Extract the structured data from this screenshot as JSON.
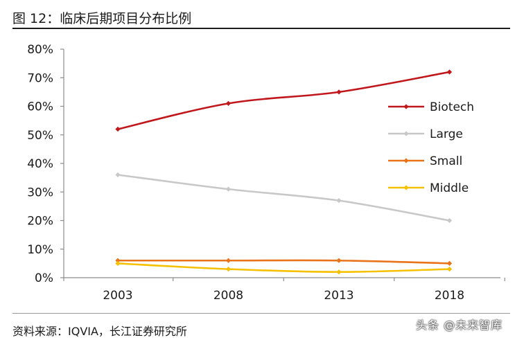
{
  "figure": {
    "title": "图  12：临床后期项目分布比例",
    "source": "资料来源：IQVIA，长江证券研究所",
    "watermark": "头条 @未来智库"
  },
  "chart_data": {
    "type": "line",
    "title": "",
    "xlabel": "",
    "ylabel": "",
    "x": [
      "2003",
      "2008",
      "2013",
      "2018"
    ],
    "y_ticks": [
      "0%",
      "10%",
      "20%",
      "30%",
      "40%",
      "50%",
      "60%",
      "70%",
      "80%"
    ],
    "ylim": [
      0,
      80
    ],
    "grid": false,
    "legend_position": "right",
    "series": [
      {
        "name": "Biotech",
        "color": "#c0171c",
        "values": [
          52,
          61,
          65,
          72
        ]
      },
      {
        "name": "Large",
        "color": "#c8c8c8",
        "values": [
          36,
          31,
          27,
          20
        ]
      },
      {
        "name": "Small",
        "color": "#e8731a",
        "values": [
          6,
          6,
          6,
          5
        ]
      },
      {
        "name": "Middle",
        "color": "#f5c000",
        "values": [
          5,
          3,
          2,
          3
        ]
      }
    ]
  }
}
